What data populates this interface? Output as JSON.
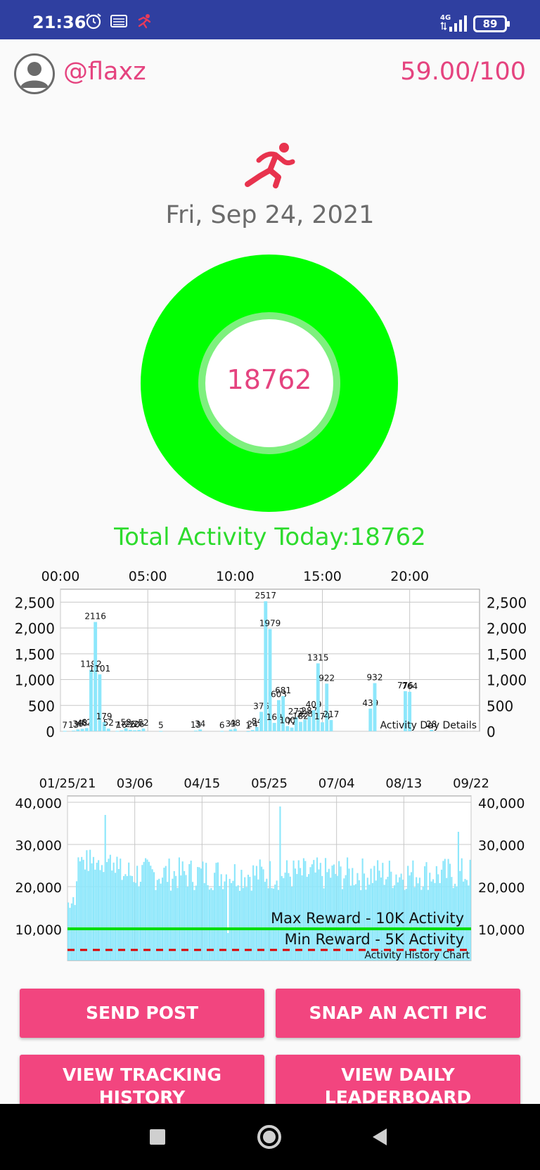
{
  "status_bar": {
    "time": "21:36",
    "network": "4G",
    "battery": "89",
    "icons": [
      "alarm-icon",
      "vpn-icon",
      "activity-icon",
      "signal-icon",
      "battery-icon"
    ]
  },
  "header": {
    "username": "@flaxz",
    "score": "59.00/100"
  },
  "date": "Fri, Sep 24, 2021",
  "ring": {
    "value": "18762",
    "color": "#00ff00"
  },
  "total_activity": "Total Activity Today:18762",
  "buttons": {
    "send_post": "SEND POST",
    "snap_pic": "SNAP AN ACTI PIC",
    "view_tracking_line1": "VIEW TRACKING",
    "view_tracking_line2": "HISTORY",
    "view_leaderboard_line1": "VIEW DAILY",
    "view_leaderboard_line2": "LEADERBOARD"
  },
  "colors": {
    "accent": "#e5437f",
    "button": "#f2457f",
    "status_bar": "#2f3fa0",
    "bar": "#8de7fb",
    "ring": "#00ff00",
    "max_line": "#00dd00",
    "min_line": "#dd0000"
  },
  "chart_data": [
    {
      "type": "bar",
      "description_label": "Activity Day Details",
      "x_tick_labels": [
        "00:00",
        "05:00",
        "10:00",
        "15:00",
        "20:00"
      ],
      "y_tick_labels": [
        "0",
        "500",
        "1,000",
        "1,500",
        "2,000",
        "2,500"
      ],
      "ylim": [
        0,
        2750
      ],
      "xlim": [
        0,
        24
      ],
      "x_unit": "hour",
      "bars": [
        {
          "x": 0.25,
          "v": 7,
          "label": "7"
        },
        {
          "x": 0.75,
          "v": 13,
          "label": "13"
        },
        {
          "x": 1.0,
          "v": 36,
          "label": "36"
        },
        {
          "x": 1.25,
          "v": 48,
          "label": "48"
        },
        {
          "x": 1.5,
          "v": 62,
          "label": "62"
        },
        {
          "x": 1.75,
          "v": 1192,
          "label": "1192"
        },
        {
          "x": 2.0,
          "v": 2116,
          "label": "2116"
        },
        {
          "x": 2.25,
          "v": 1101,
          "label": "1101"
        },
        {
          "x": 2.5,
          "v": 179,
          "label": "179"
        },
        {
          "x": 2.75,
          "v": 52,
          "label": "52"
        },
        {
          "x": 3.25,
          "v": 7,
          "label": "7"
        },
        {
          "x": 3.5,
          "v": 16,
          "label": "16"
        },
        {
          "x": 3.75,
          "v": 58,
          "label": "58"
        },
        {
          "x": 4.0,
          "v": 26,
          "label": "26"
        },
        {
          "x": 4.25,
          "v": 20,
          "label": "20"
        },
        {
          "x": 4.5,
          "v": 26,
          "label": "26"
        },
        {
          "x": 4.75,
          "v": 52,
          "label": "52"
        },
        {
          "x": 5.75,
          "v": 5,
          "label": "5"
        },
        {
          "x": 7.75,
          "v": 13,
          "label": "13"
        },
        {
          "x": 8.0,
          "v": 34,
          "label": "34"
        },
        {
          "x": 9.25,
          "v": 6,
          "label": "6"
        },
        {
          "x": 9.75,
          "v": 33,
          "label": "33"
        },
        {
          "x": 10.0,
          "v": 48,
          "label": "48"
        },
        {
          "x": 10.75,
          "v": 1,
          "label": "1"
        },
        {
          "x": 11.0,
          "v": 24,
          "label": "24"
        },
        {
          "x": 11.25,
          "v": 84,
          "label": "84"
        },
        {
          "x": 11.5,
          "v": 376,
          "label": "376"
        },
        {
          "x": 11.75,
          "v": 2517,
          "label": "2517"
        },
        {
          "x": 12.0,
          "v": 1979,
          "label": "1979"
        },
        {
          "x": 12.25,
          "v": 162,
          "label": "162"
        },
        {
          "x": 12.5,
          "v": 603,
          "label": "603"
        },
        {
          "x": 12.75,
          "v": 681,
          "label": "681"
        },
        {
          "x": 13.0,
          "v": 100,
          "label": "100"
        },
        {
          "x": 13.25,
          "v": 72,
          "label": "72"
        },
        {
          "x": 13.5,
          "v": 272,
          "label": "272"
        },
        {
          "x": 13.75,
          "v": 182,
          "label": "182"
        },
        {
          "x": 14.0,
          "v": 228,
          "label": "228"
        },
        {
          "x": 14.25,
          "v": 287,
          "label": "287"
        },
        {
          "x": 14.5,
          "v": 409,
          "label": "409"
        },
        {
          "x": 14.75,
          "v": 1315,
          "label": "1315"
        },
        {
          "x": 15.0,
          "v": 174,
          "label": "174"
        },
        {
          "x": 15.25,
          "v": 922,
          "label": "922"
        },
        {
          "x": 15.5,
          "v": 217,
          "label": "217"
        },
        {
          "x": 17.75,
          "v": 439,
          "label": "439"
        },
        {
          "x": 18.0,
          "v": 932,
          "label": "932"
        },
        {
          "x": 19.75,
          "v": 776,
          "label": "776"
        },
        {
          "x": 20.0,
          "v": 764,
          "label": "764"
        },
        {
          "x": 21.25,
          "v": 28,
          "label": "28"
        }
      ]
    },
    {
      "type": "bar",
      "description_label": "Activity History Chart",
      "x_tick_labels": [
        "01/25/21",
        "03/06",
        "04/15",
        "05/25",
        "07/04",
        "08/13",
        "09/22"
      ],
      "y_tick_labels": [
        "10,000",
        "20,000",
        "30,000",
        "40,000"
      ],
      "ylim": [
        2500,
        41500
      ],
      "x_range_days": [
        0,
        240
      ],
      "series_note": "daily totals from 01/25/21 to 09/22",
      "limit_lines": [
        {
          "label": "Max Reward - 10K Activity",
          "value": 10000,
          "style": "solid"
        },
        {
          "label": "Min Reward - 5K Activity",
          "value": 5000,
          "style": "dashed"
        }
      ]
    }
  ]
}
